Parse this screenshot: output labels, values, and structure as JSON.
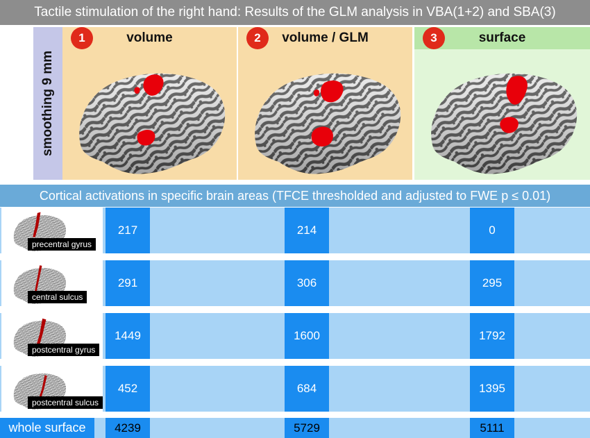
{
  "title": "Tactile stimulation of the right hand: Results of the GLM analysis in VBA(1+2) and SBA(3)",
  "row_label": "smoothing 9 mm",
  "columns": [
    {
      "number": "1",
      "label": "volume",
      "color": "#f8dca8"
    },
    {
      "number": "2",
      "label": "volume / GLM",
      "color": "#f8dca8"
    },
    {
      "number": "3",
      "label": "surface",
      "color": "#b8e6a8"
    }
  ],
  "activations_header": "Cortical activations in specific brain areas (TFCE thresholded and adjusted to FWE p ≤ 0.01)",
  "regions": [
    {
      "name": "precentral gyrus",
      "values": [
        "217",
        "214",
        "0"
      ]
    },
    {
      "name": "central sulcus",
      "values": [
        "291",
        "306",
        "295"
      ]
    },
    {
      "name": "postcentral gyrus",
      "values": [
        "1449",
        "1600",
        "1792"
      ]
    },
    {
      "name": "postcentral sulcus",
      "values": [
        "452",
        "684",
        "1395"
      ]
    }
  ],
  "summary": {
    "name": "whole surface",
    "values": [
      "4239",
      "5729",
      "5111"
    ]
  },
  "colors": {
    "accent_red": "#e02a1a",
    "cell_blue": "#1a8cf0",
    "strip_blue": "#a8d4f6",
    "brain_dark": "#505050",
    "activation_red": "#e8000a"
  }
}
